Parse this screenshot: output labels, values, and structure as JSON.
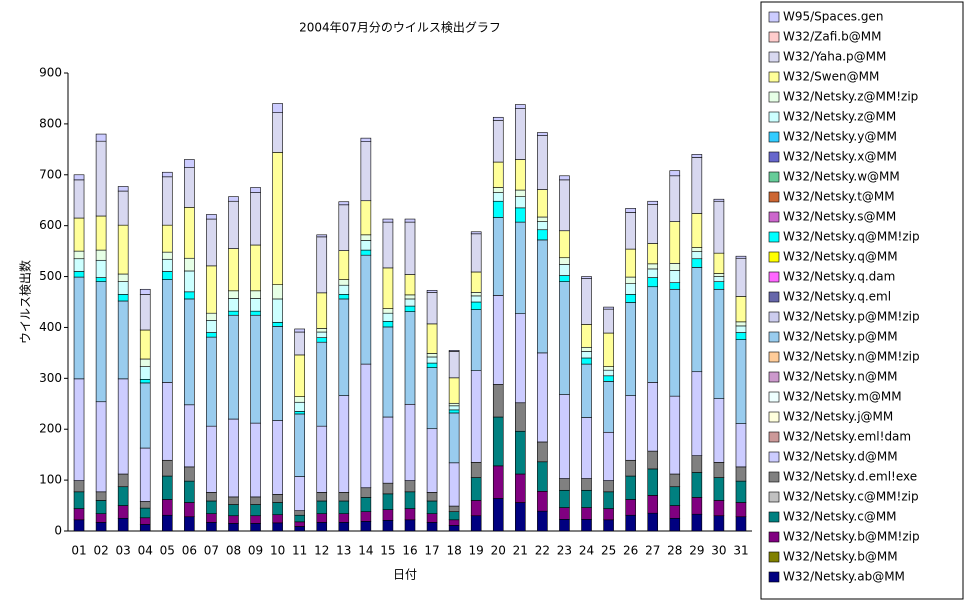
{
  "chart_data": {
    "type": "stacked_bar",
    "title": "2004年07月分のウイルス検出グラフ",
    "x_label": "日付",
    "y_label": "ウイルス検出数",
    "categories": [
      "01",
      "02",
      "03",
      "04",
      "05",
      "06",
      "07",
      "08",
      "09",
      "10",
      "11",
      "12",
      "13",
      "14",
      "15",
      "16",
      "17",
      "18",
      "19",
      "20",
      "21",
      "22",
      "23",
      "24",
      "25",
      "26",
      "27",
      "28",
      "29",
      "30",
      "31"
    ],
    "ylim": [
      0,
      900
    ],
    "yticks": [
      0,
      100,
      200,
      300,
      400,
      500,
      600,
      700,
      800,
      900
    ],
    "grid": false,
    "legend": "right",
    "series": [
      {
        "name": "W95/Spaces.gen",
        "color": "#ccccff",
        "values": [
          10,
          14,
          9,
          10,
          9,
          16,
          9,
          9,
          10,
          18,
          6,
          4,
          6,
          7,
          6,
          6,
          4,
          2,
          4,
          6,
          8,
          6,
          8,
          4,
          4,
          8,
          6,
          10,
          6,
          4,
          4
        ]
      },
      {
        "name": "W32/Zafi.b@MM",
        "color": "#ffcccc",
        "values": [
          0,
          0,
          0,
          0,
          0,
          0,
          0,
          0,
          0,
          0,
          0,
          0,
          0,
          0,
          0,
          0,
          0,
          0,
          0,
          0,
          0,
          0,
          0,
          0,
          0,
          0,
          0,
          0,
          0,
          0,
          0
        ]
      },
      {
        "name": "W32/Yaha.p@MM",
        "color": "#d8d8f0",
        "values": [
          75,
          147,
          67,
          70,
          95,
          78,
          92,
          93,
          103,
          78,
          45,
          110,
          90,
          116,
          90,
          103,
          62,
          52,
          75,
          82,
          100,
          106,
          100,
          90,
          47,
          72,
          77,
          90,
          110,
          102,
          75
        ]
      },
      {
        "name": "W32/Swen@MM",
        "color": "#ffff99",
        "values": [
          65,
          67,
          96,
          57,
          53,
          100,
          93,
          83,
          90,
          260,
          82,
          70,
          57,
          67,
          80,
          40,
          58,
          50,
          40,
          50,
          60,
          54,
          53,
          45,
          66,
          55,
          40,
          82,
          67,
          40,
          50
        ]
      },
      {
        "name": "W32/Netsky.z@MM!zip",
        "color": "#e6ffe6",
        "values": [
          15,
          20,
          15,
          15,
          14,
          25,
          14,
          15,
          15,
          28,
          11,
          7,
          11,
          11,
          9,
          8,
          7,
          5,
          7,
          10,
          13,
          9,
          13,
          8,
          7,
          13,
          10,
          14,
          8,
          6,
          8
        ]
      },
      {
        "name": "W32/Netsky.z@MM",
        "color": "#ccffff",
        "values": [
          25,
          34,
          25,
          25,
          24,
          41,
          24,
          25,
          25,
          46,
          18,
          11,
          18,
          19,
          16,
          14,
          12,
          8,
          12,
          17,
          22,
          16,
          22,
          13,
          11,
          21,
          17,
          24,
          14,
          10,
          13
        ]
      },
      {
        "name": "W32/Netsky.y@MM",
        "color": "#33ccff",
        "values": [
          0,
          0,
          0,
          0,
          0,
          0,
          0,
          0,
          0,
          0,
          0,
          0,
          0,
          0,
          0,
          0,
          0,
          0,
          0,
          0,
          0,
          0,
          0,
          0,
          0,
          0,
          0,
          0,
          0,
          0,
          0
        ]
      },
      {
        "name": "W32/Netsky.x@MM",
        "color": "#6666cc",
        "values": [
          0,
          0,
          0,
          0,
          0,
          0,
          0,
          0,
          0,
          0,
          0,
          0,
          0,
          0,
          0,
          0,
          0,
          0,
          0,
          0,
          0,
          0,
          0,
          0,
          0,
          0,
          0,
          0,
          0,
          0,
          0
        ]
      },
      {
        "name": "W32/Netsky.w@MM",
        "color": "#66cc99",
        "values": [
          0,
          0,
          0,
          0,
          0,
          0,
          0,
          0,
          0,
          0,
          0,
          0,
          0,
          0,
          0,
          0,
          0,
          0,
          0,
          0,
          0,
          0,
          0,
          0,
          0,
          0,
          0,
          0,
          0,
          0,
          0
        ]
      },
      {
        "name": "W32/Netsky.t@MM",
        "color": "#cc6633",
        "values": [
          0,
          0,
          0,
          0,
          0,
          0,
          0,
          0,
          0,
          0,
          0,
          0,
          0,
          0,
          0,
          0,
          0,
          0,
          0,
          0,
          0,
          0,
          0,
          0,
          0,
          0,
          0,
          0,
          0,
          0,
          0
        ]
      },
      {
        "name": "W32/Netsky.s@MM",
        "color": "#cc66cc",
        "values": [
          0,
          0,
          0,
          0,
          0,
          0,
          0,
          0,
          0,
          0,
          0,
          0,
          0,
          0,
          0,
          0,
          0,
          0,
          0,
          0,
          0,
          0,
          0,
          0,
          0,
          0,
          0,
          0,
          0,
          0,
          0
        ]
      },
      {
        "name": "W32/Netsky.q@MM!zip",
        "color": "#00ffff",
        "values": [
          11,
          8,
          13,
          7,
          16,
          14,
          9,
          8,
          8,
          8,
          5,
          9,
          9,
          10,
          11,
          11,
          9,
          6,
          15,
          32,
          28,
          20,
          12,
          12,
          11,
          16,
          18,
          13,
          17,
          15,
          14
        ]
      },
      {
        "name": "W32/Netsky.q@MM",
        "color": "#ffff00",
        "values": [
          0,
          0,
          0,
          0,
          0,
          0,
          0,
          0,
          0,
          0,
          0,
          0,
          0,
          0,
          0,
          0,
          0,
          0,
          0,
          0,
          0,
          0,
          0,
          0,
          0,
          0,
          0,
          0,
          0,
          0,
          0
        ]
      },
      {
        "name": "W32/Netsky.q.dam",
        "color": "#ff66ff",
        "values": [
          0,
          0,
          0,
          0,
          0,
          0,
          0,
          0,
          0,
          0,
          0,
          0,
          0,
          0,
          0,
          0,
          0,
          0,
          0,
          0,
          0,
          0,
          0,
          0,
          0,
          0,
          0,
          0,
          0,
          0,
          0
        ]
      },
      {
        "name": "W32/Netsky.q.eml",
        "color": "#6666aa",
        "values": [
          0,
          0,
          0,
          0,
          0,
          0,
          0,
          0,
          0,
          0,
          0,
          0,
          0,
          0,
          0,
          0,
          0,
          0,
          0,
          0,
          0,
          0,
          0,
          0,
          0,
          0,
          0,
          0,
          0,
          0,
          0
        ]
      },
      {
        "name": "W32/Netsky.p@MM!zip",
        "color": "#ccccee",
        "values": [
          0,
          0,
          0,
          0,
          0,
          0,
          0,
          0,
          0,
          0,
          0,
          0,
          0,
          0,
          0,
          0,
          0,
          0,
          0,
          0,
          0,
          0,
          0,
          0,
          0,
          0,
          0,
          0,
          0,
          0,
          0
        ]
      },
      {
        "name": "W32/Netsky.p@MM",
        "color": "#99ccee",
        "values": [
          200,
          236,
          153,
          128,
          202,
          208,
          175,
          204,
          212,
          185,
          123,
          165,
          190,
          214,
          177,
          182,
          120,
          98,
          120,
          153,
          180,
          222,
          222,
          105,
          100,
          183,
          188,
          210,
          205,
          215,
          165
        ]
      },
      {
        "name": "W32/Netsky.n@MM!zip",
        "color": "#ffcc99",
        "values": [
          0,
          0,
          0,
          0,
          0,
          0,
          0,
          0,
          0,
          0,
          0,
          0,
          0,
          0,
          0,
          0,
          0,
          0,
          0,
          0,
          0,
          0,
          0,
          0,
          0,
          0,
          0,
          0,
          0,
          0,
          0
        ]
      },
      {
        "name": "W32/Netsky.n@MM",
        "color": "#cc99cc",
        "values": [
          0,
          0,
          0,
          0,
          0,
          0,
          0,
          0,
          0,
          0,
          0,
          0,
          0,
          0,
          0,
          0,
          0,
          0,
          0,
          0,
          0,
          0,
          0,
          0,
          0,
          0,
          0,
          0,
          0,
          0,
          0
        ]
      },
      {
        "name": "W32/Netsky.m@MM",
        "color": "#eeffff",
        "values": [
          0,
          0,
          0,
          0,
          0,
          0,
          0,
          0,
          0,
          0,
          0,
          0,
          0,
          0,
          0,
          0,
          0,
          0,
          0,
          0,
          0,
          0,
          0,
          0,
          0,
          0,
          0,
          0,
          0,
          0,
          0
        ]
      },
      {
        "name": "W32/Netsky.j@MM",
        "color": "#ffffdd",
        "values": [
          0,
          0,
          0,
          0,
          0,
          0,
          0,
          0,
          0,
          0,
          0,
          0,
          0,
          0,
          0,
          0,
          0,
          0,
          0,
          0,
          0,
          0,
          0,
          0,
          0,
          0,
          0,
          0,
          0,
          0,
          0
        ]
      },
      {
        "name": "W32/Netsky.eml!dam",
        "color": "#cc9999",
        "values": [
          0,
          0,
          0,
          0,
          0,
          0,
          0,
          0,
          0,
          0,
          0,
          0,
          0,
          0,
          0,
          0,
          0,
          0,
          0,
          0,
          0,
          0,
          0,
          0,
          0,
          0,
          0,
          0,
          0,
          0,
          0
        ]
      },
      {
        "name": "W32/Netsky.d@MM",
        "color": "#ccccff",
        "values": [
          200,
          177,
          187,
          105,
          153,
          122,
          130,
          153,
          145,
          145,
          67,
          130,
          190,
          243,
          130,
          150,
          125,
          85,
          180,
          175,
          175,
          175,
          165,
          120,
          95,
          127,
          135,
          153,
          165,
          125,
          85
        ]
      },
      {
        "name": "W32/Netsky.d.eml!exe",
        "color": "#808080",
        "values": [
          22,
          17,
          25,
          13,
          31,
          28,
          17,
          15,
          15,
          16,
          9,
          17,
          17,
          19,
          21,
          22,
          17,
          11,
          30,
          64,
          56,
          39,
          23,
          23,
          22,
          31,
          35,
          25,
          33,
          30,
          28
        ]
      },
      {
        "name": "W32/Netsky.c@MM!zip",
        "color": "#c0c0c0",
        "values": [
          0,
          0,
          0,
          0,
          0,
          0,
          0,
          0,
          0,
          0,
          0,
          0,
          0,
          0,
          0,
          0,
          0,
          0,
          0,
          0,
          0,
          0,
          0,
          0,
          0,
          0,
          0,
          0,
          0,
          0,
          0
        ]
      },
      {
        "name": "W32/Netsky.c@MM",
        "color": "#008080",
        "values": [
          33,
          26,
          37,
          19,
          46,
          42,
          25,
          22,
          22,
          24,
          13,
          25,
          25,
          28,
          31,
          33,
          25,
          16,
          45,
          96,
          84,
          58,
          34,
          34,
          33,
          46,
          52,
          37,
          49,
          45,
          42
        ]
      },
      {
        "name": "W32/Netsky.b@MM!zip",
        "color": "#800080",
        "values": [
          22,
          17,
          25,
          13,
          31,
          28,
          17,
          15,
          15,
          16,
          9,
          17,
          17,
          19,
          21,
          22,
          17,
          11,
          30,
          64,
          56,
          39,
          23,
          23,
          22,
          31,
          35,
          25,
          33,
          30,
          28
        ]
      },
      {
        "name": "W32/Netsky.b@MM",
        "color": "#808000",
        "values": [
          0,
          0,
          0,
          0,
          0,
          0,
          0,
          0,
          0,
          0,
          0,
          0,
          0,
          0,
          0,
          0,
          0,
          0,
          0,
          0,
          0,
          0,
          0,
          0,
          0,
          0,
          0,
          0,
          0,
          0,
          0
        ]
      },
      {
        "name": "W32/Netsky.ab@MM",
        "color": "#000080",
        "values": [
          22,
          17,
          25,
          13,
          31,
          28,
          17,
          15,
          15,
          16,
          9,
          17,
          17,
          19,
          21,
          22,
          17,
          11,
          30,
          64,
          56,
          39,
          23,
          23,
          22,
          31,
          35,
          25,
          33,
          30,
          28
        ]
      }
    ]
  }
}
